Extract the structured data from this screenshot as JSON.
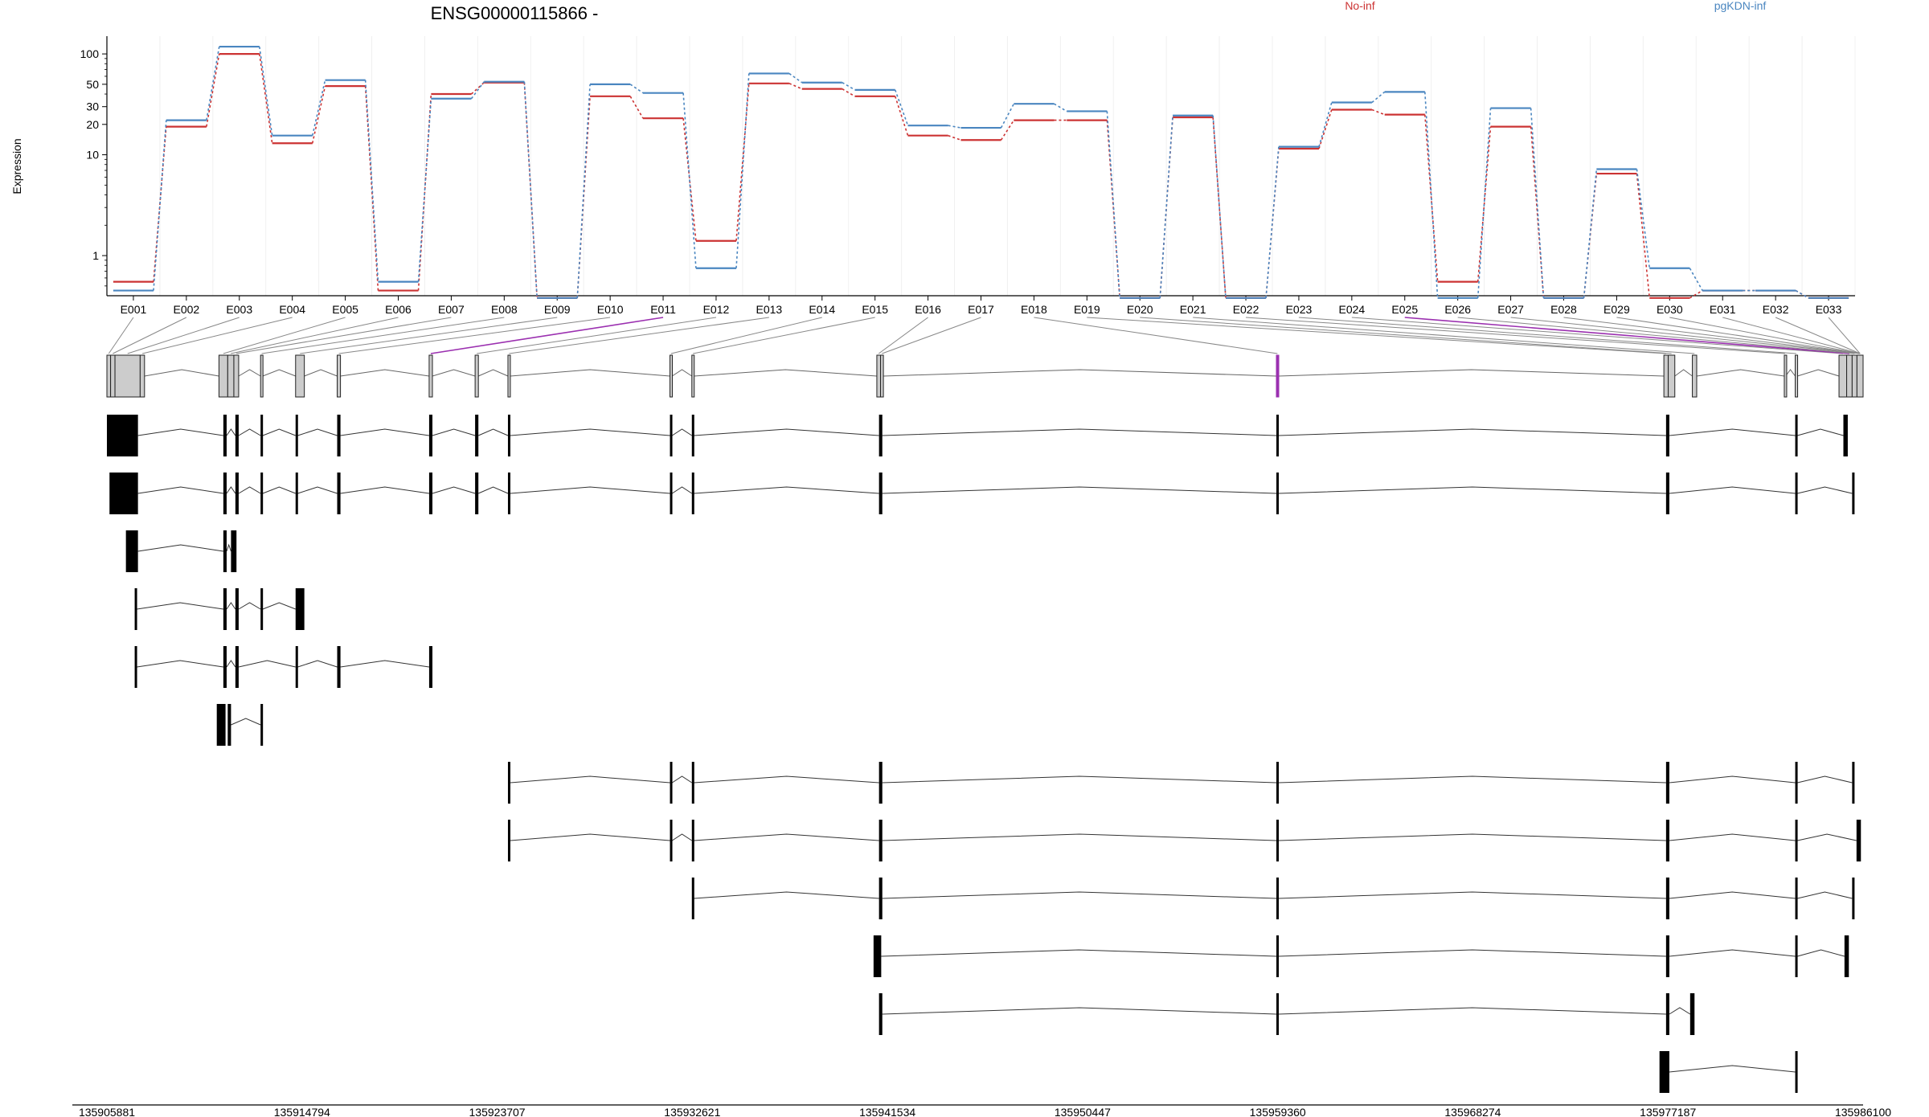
{
  "chart_data": {
    "type": "line",
    "title": "ENSG00000115866 -",
    "ylabel": "Expression",
    "yscale": "log",
    "ylim": [
      0.4,
      150
    ],
    "yticks": [
      1,
      10,
      20,
      30,
      50,
      100
    ],
    "categories": [
      "E001",
      "E002",
      "E003",
      "E004",
      "E005",
      "E006",
      "E007",
      "E008",
      "E009",
      "E010",
      "E011",
      "E012",
      "E013",
      "E014",
      "E015",
      "E016",
      "E017",
      "E018",
      "E019",
      "E020",
      "E021",
      "E022",
      "E023",
      "E024",
      "E025",
      "E026",
      "E027",
      "E028",
      "E029",
      "E030",
      "E031",
      "E032",
      "E033"
    ],
    "series": [
      {
        "name": "No-inf",
        "color": "#cc3333",
        "values": [
          0.55,
          19,
          100,
          13,
          48,
          0.45,
          40,
          52,
          0.38,
          38,
          23,
          1.4,
          51,
          45,
          38,
          15.5,
          14,
          22,
          22,
          0.38,
          23.5,
          0.38,
          11.5,
          28,
          25,
          0.55,
          19,
          0.38,
          6.5,
          0.38,
          0.45,
          0.45,
          0.38
        ]
      },
      {
        "name": "pgKDN-inf",
        "color": "#4a86c0",
        "values": [
          0.45,
          22,
          118,
          15.5,
          55,
          0.55,
          36,
          53,
          0.38,
          50,
          41,
          0.75,
          64,
          52,
          44,
          19.5,
          18.5,
          32,
          27,
          0.38,
          24.5,
          0.38,
          12,
          33,
          42,
          0.38,
          29,
          0.38,
          7.2,
          0.75,
          0.45,
          0.45,
          0.38
        ]
      }
    ],
    "genome_axis": {
      "ticks": [
        "135905881",
        "135914794",
        "135923707",
        "135932621",
        "135941534",
        "135950447",
        "135959360",
        "135968274",
        "135977187",
        "135986100"
      ]
    },
    "highlight_exons": [
      "E011",
      "E025"
    ],
    "highlight_color": "#9b30b0",
    "grid": true
  }
}
